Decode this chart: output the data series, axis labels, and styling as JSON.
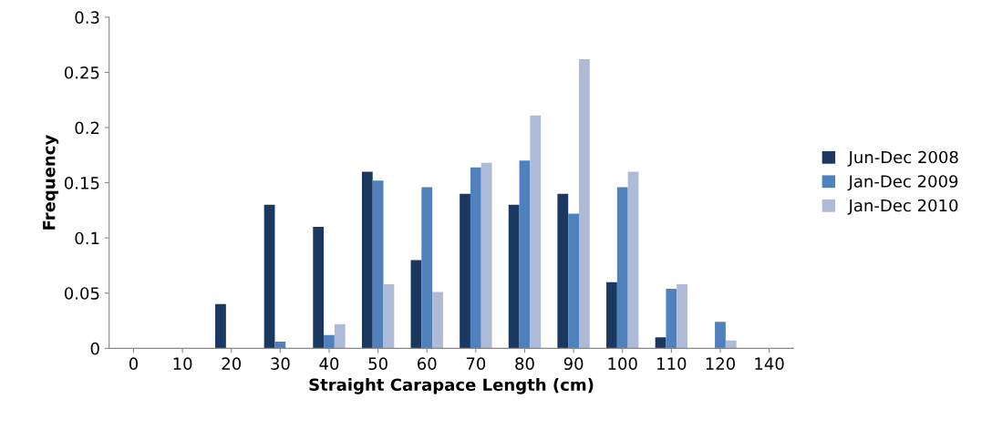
{
  "chart_data": {
    "type": "bar",
    "xlabel": "Straight Carapace Length (cm)",
    "ylabel": "Frequency",
    "categories": [
      "0",
      "10",
      "20",
      "30",
      "40",
      "50",
      "60",
      "70",
      "80",
      "90",
      "100",
      "110",
      "120",
      "140"
    ],
    "series": [
      {
        "name": "Jun-Dec 2008",
        "color": "#1a3860",
        "values": [
          0,
          0,
          0.04,
          0.13,
          0.11,
          0.16,
          0.08,
          0.14,
          0.13,
          0.14,
          0.06,
          0.01,
          0,
          0
        ]
      },
      {
        "name": "Jan-Dec 2009",
        "color": "#4f81bd",
        "values": [
          0,
          0,
          0,
          0.006,
          0.012,
          0.152,
          0.146,
          0.164,
          0.17,
          0.122,
          0.146,
          0.054,
          0.024,
          0
        ]
      },
      {
        "name": "Jan-Dec 2010",
        "color": "#adbad8",
        "values": [
          0,
          0,
          0,
          0,
          0.022,
          0.058,
          0.051,
          0.168,
          0.211,
          0.262,
          0.16,
          0.058,
          0.007,
          0
        ]
      }
    ],
    "ylim": [
      0,
      0.3
    ],
    "yticks": [
      0,
      0.05,
      0.1,
      0.15,
      0.2,
      0.25,
      0.3
    ],
    "grid": false,
    "legend": "right"
  }
}
